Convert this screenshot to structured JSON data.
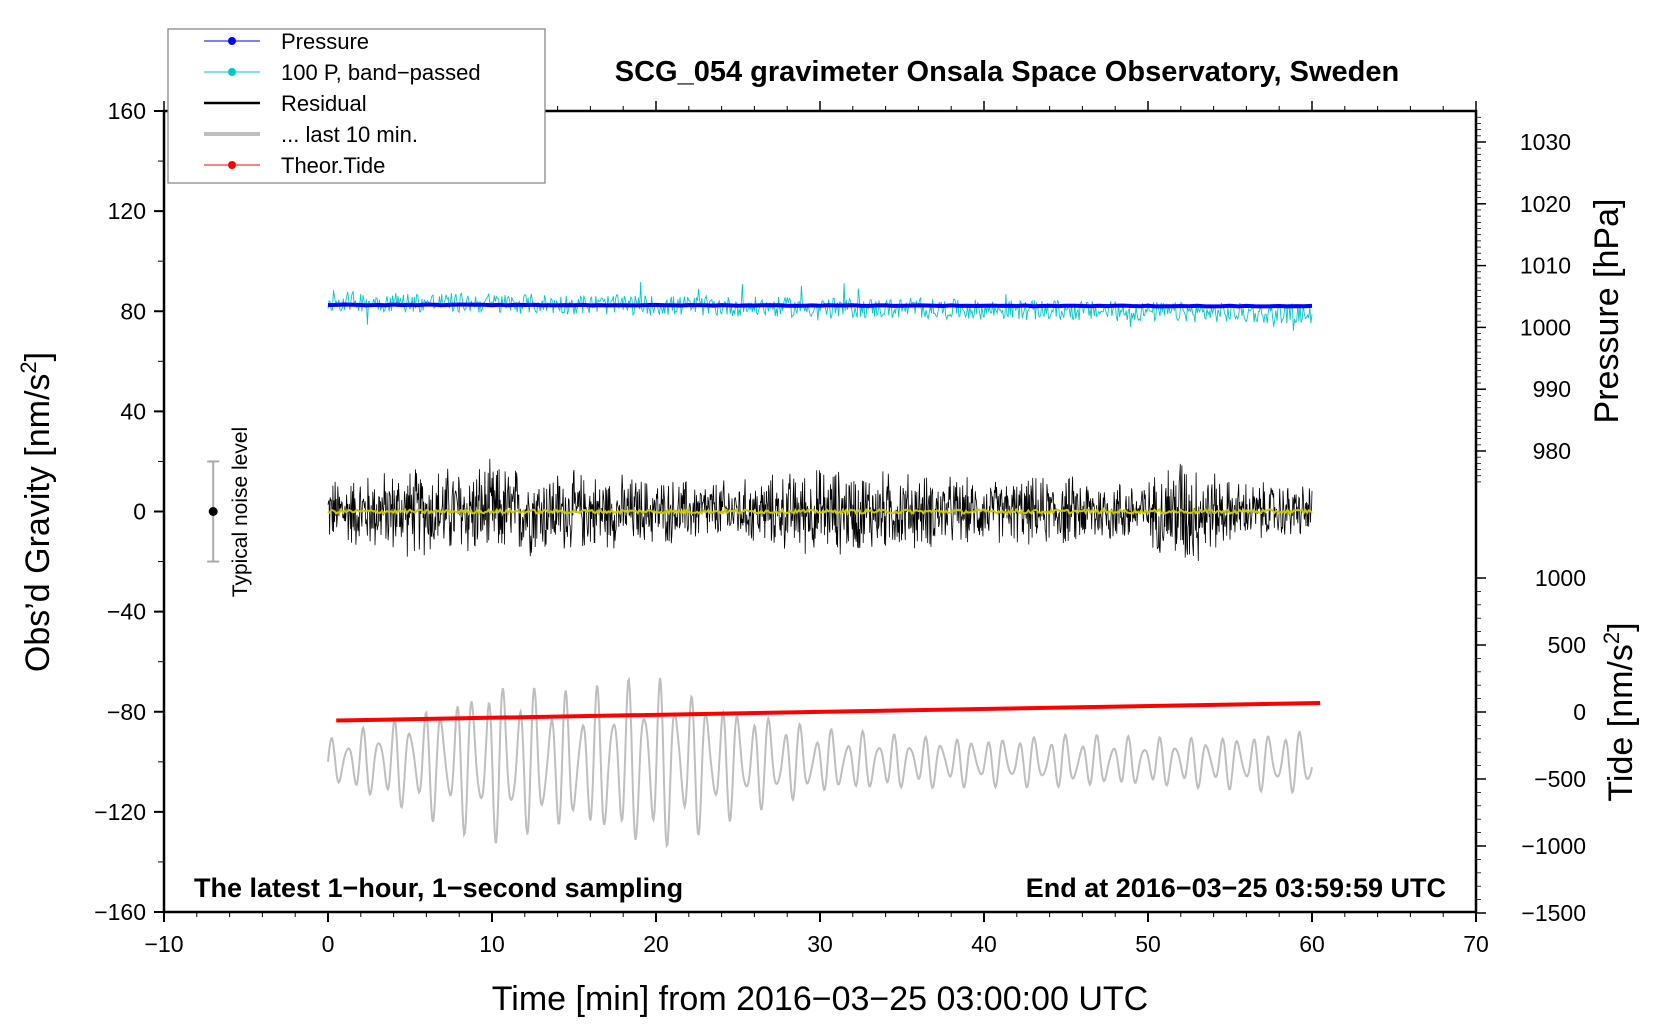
{
  "chart_data": {
    "type": "line",
    "title": "SCG_054 gravimeter Onsala Space Observatory, Sweden",
    "xlabel": "Time [min] from 2016−03−25 03:00:00 UTC",
    "ylabel": "Obs’d Gravity [nm/s²]",
    "ylabel_main": "Obs’d Gravity [nm/s",
    "ylabel_sup": "2",
    "ylabel_end": "]",
    "y2label": "Pressure [hPa]",
    "y3label_main": "Tide [nm/s",
    "y3label_sup": "2",
    "y3label_end": "]",
    "xlim": [
      -10,
      70
    ],
    "ylim": [
      -160,
      160
    ],
    "y2lim": [
      1000,
      1030
    ],
    "x_ticks": [
      "−10",
      "0",
      "10",
      "20",
      "30",
      "40",
      "50",
      "60",
      "70"
    ],
    "x_tick_values": [
      -10,
      0,
      10,
      20,
      30,
      40,
      50,
      60,
      70
    ],
    "y_ticks": [
      "160",
      "120",
      "80",
      "40",
      "0",
      "−40",
      "−80",
      "−120",
      "−160"
    ],
    "y_tick_values": [
      160,
      120,
      80,
      40,
      0,
      -40,
      -80,
      -120,
      -160
    ],
    "pressure_ticks": [
      "1030",
      "1020",
      "1010",
      "1000",
      "990",
      "980"
    ],
    "pressure_tick_values": [
      1030,
      1020,
      1010,
      1000,
      990,
      980
    ],
    "tide_ticks": [
      "1000",
      "500",
      "0",
      "−500",
      "−1000",
      "−1500"
    ],
    "tide_tick_values": [
      1000,
      500,
      0,
      -500,
      -1000,
      -1500
    ],
    "legend": {
      "placement": "top-left",
      "entries": [
        {
          "label": "Pressure",
          "color": "#0000ff",
          "marker": "dot"
        },
        {
          "label": "100 P, band−passed",
          "color": "#00c8c8",
          "marker": "dot"
        },
        {
          "label": "Residual",
          "color": "#000000",
          "marker": "line"
        },
        {
          "label": "... last 10 min.",
          "color": "#bebebe",
          "marker": "thick-line"
        },
        {
          "label": "Theor.Tide",
          "color": "#ff0000",
          "marker": "dot"
        }
      ]
    },
    "annotations": {
      "left": "The latest 1−hour, 1−second sampling",
      "right": "End at 2016−03−25 03:59:59 UTC",
      "noise": "Typical noise level"
    },
    "noise_level": {
      "x": -7,
      "center": 0,
      "halfwidth": 20
    },
    "series": [
      {
        "name": "Pressure",
        "color": "#0000ff",
        "x_range": [
          0,
          60
        ],
        "y_start": 82.6,
        "y_end": 82.0,
        "unit_axis": "left"
      },
      {
        "name": "100 P, band−passed",
        "color": "#00c8c8",
        "x_range": [
          0,
          60
        ],
        "y_start": 84,
        "y_end": 79,
        "noise_amp": 4
      },
      {
        "name": "Residual",
        "color": "#000000",
        "x_range": [
          0,
          60
        ],
        "center": 0,
        "envelope_x": [
          0,
          5,
          10,
          15,
          20,
          25,
          30,
          35,
          40,
          45,
          50,
          52,
          55,
          60
        ],
        "envelope": [
          15,
          20,
          22,
          18,
          15,
          14,
          20,
          18,
          14,
          16,
          14,
          28,
          14,
          12
        ]
      },
      {
        "name": "Residual smoothed",
        "color": "#c8c800",
        "x_range": [
          0,
          60
        ],
        "center": 0
      },
      {
        "name": "... last 10 min.",
        "color": "#bebebe",
        "x_range": [
          0,
          60
        ],
        "center": -100,
        "envelope_x": [
          0,
          5,
          10,
          15,
          20,
          25,
          30,
          35,
          40,
          45,
          50,
          55,
          60
        ],
        "envelope": [
          8,
          18,
          30,
          25,
          33,
          20,
          12,
          10,
          9,
          10,
          9,
          10,
          12
        ]
      },
      {
        "name": "Theor.Tide",
        "color": "#ff0000",
        "x_range": [
          0.5,
          60.5
        ],
        "y_start": -83.5,
        "y_end": -76.5
      }
    ]
  }
}
